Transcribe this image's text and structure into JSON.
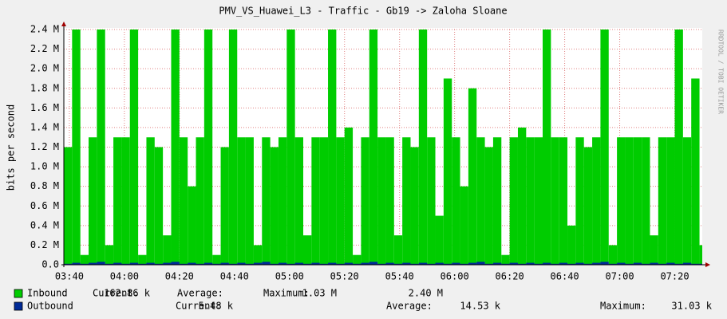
{
  "chart_data": {
    "type": "area",
    "title": "PMV_VS_Huawei_L3 - Traffic - Gb19 -> Zaloha Sloane",
    "ylabel": "bits per second",
    "watermark": "RRDTOOL / TOBI OETIKER",
    "x": [
      218,
      221,
      224,
      227,
      230,
      233,
      236,
      239,
      242,
      245,
      248,
      251,
      254,
      257,
      260,
      263,
      266,
      269,
      272,
      275,
      278,
      281,
      284,
      287,
      290,
      293,
      296,
      299,
      302,
      305,
      308,
      311,
      314,
      317,
      320,
      323,
      326,
      329,
      332,
      335,
      338,
      341,
      344,
      347,
      350,
      353,
      356,
      359,
      362,
      365,
      368,
      371,
      374,
      377,
      380,
      383,
      386,
      389,
      392,
      395,
      398,
      401,
      404,
      407,
      410,
      413,
      416,
      419,
      422,
      425,
      428,
      431,
      434,
      437,
      440,
      443,
      446,
      449
    ],
    "xlim": [
      218,
      450
    ],
    "xticks": [
      {
        "value": 220,
        "label": "03:40"
      },
      {
        "value": 240,
        "label": "04:00"
      },
      {
        "value": 260,
        "label": "04:20"
      },
      {
        "value": 280,
        "label": "04:40"
      },
      {
        "value": 300,
        "label": "05:00"
      },
      {
        "value": 320,
        "label": "05:20"
      },
      {
        "value": 340,
        "label": "05:40"
      },
      {
        "value": 360,
        "label": "06:00"
      },
      {
        "value": 380,
        "label": "06:20"
      },
      {
        "value": 400,
        "label": "06:40"
      },
      {
        "value": 420,
        "label": "07:00"
      },
      {
        "value": 440,
        "label": "07:20"
      }
    ],
    "ylim": [
      0,
      2.4
    ],
    "yticks": [
      {
        "value": 0,
        "label": "0.0"
      },
      {
        "value": 0.2,
        "label": "0.2 M"
      },
      {
        "value": 0.4,
        "label": "0.4 M"
      },
      {
        "value": 0.6,
        "label": "0.6 M"
      },
      {
        "value": 0.8,
        "label": "0.8 M"
      },
      {
        "value": 1.0,
        "label": "1.0 M"
      },
      {
        "value": 1.2,
        "label": "1.2 M"
      },
      {
        "value": 1.4,
        "label": "1.4 M"
      },
      {
        "value": 1.6,
        "label": "1.6 M"
      },
      {
        "value": 1.8,
        "label": "1.8 M"
      },
      {
        "value": 2.0,
        "label": "2.0 M"
      },
      {
        "value": 2.2,
        "label": "2.2 M"
      },
      {
        "value": 2.4,
        "label": "2.4 M"
      }
    ],
    "grid": true,
    "series": [
      {
        "name": "Inbound",
        "color": "#00cc00",
        "values": [
          1.2,
          2.4,
          0.1,
          1.3,
          2.4,
          0.2,
          1.3,
          1.3,
          2.4,
          0.1,
          1.3,
          1.2,
          0.3,
          2.4,
          1.3,
          0.8,
          1.3,
          2.4,
          0.1,
          1.2,
          2.4,
          1.3,
          1.3,
          0.2,
          1.3,
          1.2,
          1.3,
          2.4,
          1.3,
          0.3,
          1.3,
          1.3,
          2.4,
          1.3,
          1.4,
          0.1,
          1.3,
          2.4,
          1.3,
          1.3,
          0.3,
          1.3,
          1.2,
          2.4,
          1.3,
          0.5,
          1.9,
          1.3,
          0.8,
          1.8,
          1.3,
          1.2,
          1.3,
          0.1,
          1.3,
          1.4,
          1.3,
          1.3,
          2.4,
          1.3,
          1.3,
          0.4,
          1.3,
          1.2,
          1.3,
          2.4,
          0.2,
          1.3,
          1.3,
          1.3,
          1.3,
          0.3,
          1.3,
          1.3,
          2.4,
          1.3,
          1.9,
          0.2
        ],
        "stats": [
          {
            "label": "Current:",
            "value": "162.86 k"
          },
          {
            "label": "Average:",
            "value": "1.03 M"
          },
          {
            "label": "Maximum:",
            "value": "2.40 M"
          }
        ]
      },
      {
        "name": "Outbound",
        "color": "#002a97",
        "values": [
          0.01,
          0.02,
          0.01,
          0.02,
          0.03,
          0.01,
          0.02,
          0.01,
          0.02,
          0.01,
          0.02,
          0.01,
          0.02,
          0.03,
          0.01,
          0.02,
          0.01,
          0.02,
          0.01,
          0.02,
          0.01,
          0.02,
          0.01,
          0.02,
          0.03,
          0.01,
          0.02,
          0.01,
          0.02,
          0.01,
          0.02,
          0.01,
          0.02,
          0.01,
          0.02,
          0.01,
          0.02,
          0.03,
          0.01,
          0.02,
          0.01,
          0.02,
          0.01,
          0.02,
          0.01,
          0.02,
          0.01,
          0.02,
          0.01,
          0.02,
          0.03,
          0.01,
          0.02,
          0.01,
          0.02,
          0.01,
          0.02,
          0.01,
          0.02,
          0.01,
          0.02,
          0.01,
          0.02,
          0.01,
          0.02,
          0.03,
          0.01,
          0.02,
          0.01,
          0.02,
          0.01,
          0.02,
          0.01,
          0.02,
          0.01,
          0.02,
          0.01,
          0.01
        ],
        "stats": [
          {
            "label": "Current:",
            "value": "5.48 k"
          },
          {
            "label": "Average:",
            "value": "14.53 k"
          },
          {
            "label": "Maximum:",
            "value": "31.03 k"
          }
        ]
      }
    ]
  }
}
